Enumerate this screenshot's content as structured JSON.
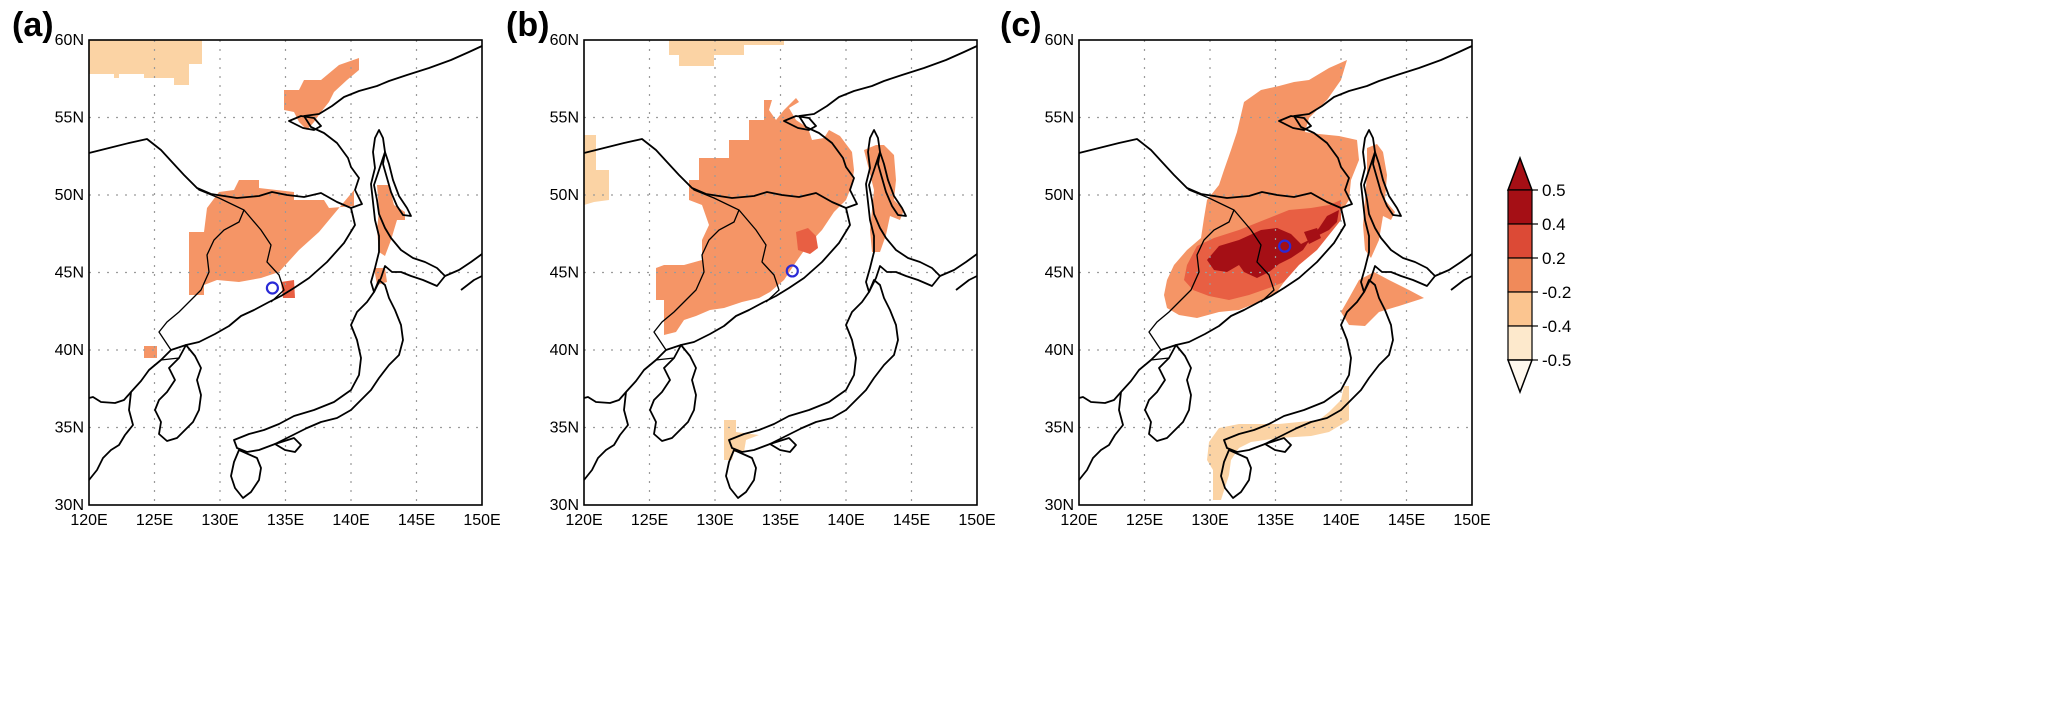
{
  "panels": [
    {
      "label": "(a)"
    },
    {
      "label": "(b)"
    },
    {
      "label": "(c)"
    }
  ],
  "axes": {
    "x_ticks": [
      "120E",
      "125E",
      "130E",
      "135E",
      "140E",
      "145E",
      "150E"
    ],
    "y_ticks": [
      "60N",
      "55N",
      "50N",
      "45N",
      "40N",
      "35N",
      "30N"
    ]
  },
  "colorbar": {
    "labels": [
      "0.5",
      "0.4",
      "0.2",
      "-0.2",
      "-0.4",
      "-0.5"
    ],
    "colors": [
      "#a50f15",
      "#dc4a36",
      "#f08a5a",
      "#fbc590",
      "#fde9cc",
      "#fff8ee"
    ]
  },
  "map_data": {
    "extent": {
      "lon": [
        120,
        150
      ],
      "lat": [
        30,
        60
      ]
    },
    "markers": [
      {
        "panel": "(a)",
        "lon": 134.0,
        "lat": 44.0
      },
      {
        "panel": "(b)",
        "lon": 135.9,
        "lat": 45.1
      },
      {
        "panel": "(c)",
        "lon": 135.7,
        "lat": 46.7
      }
    ]
  }
}
